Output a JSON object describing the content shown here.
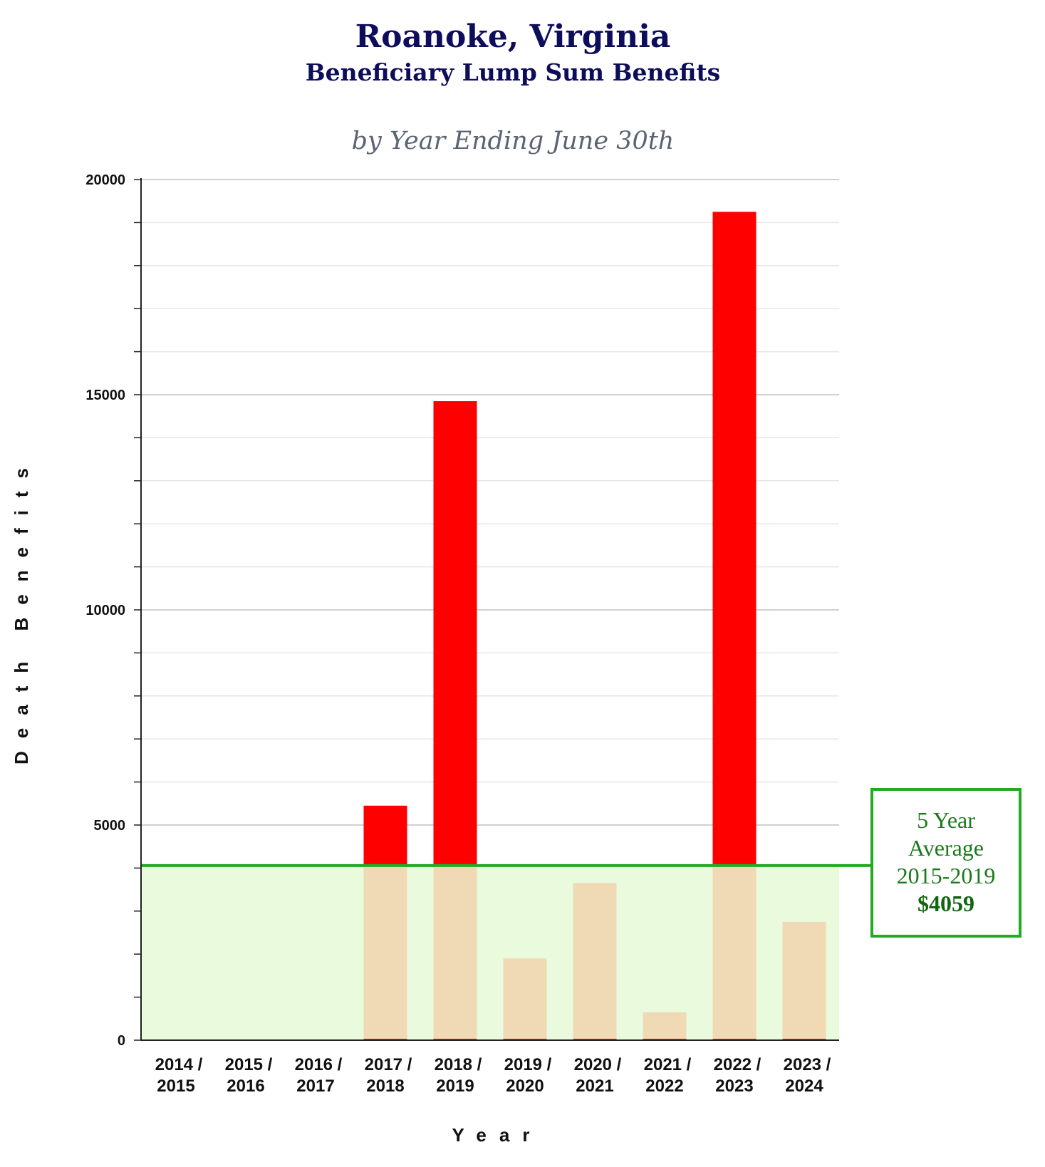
{
  "header": {
    "title": "Roanoke, Virginia",
    "subtitle": "Beneficiary Lump Sum Benefits",
    "caption": "by Year Ending June 30th"
  },
  "chart_data": {
    "type": "bar",
    "title": "Roanoke, Virginia Beneficiary Lump Sum Benefits",
    "subtitle": "by Year Ending June 30th",
    "xlabel": "Year",
    "ylabel": "Death Benefits",
    "categories": [
      [
        "2014 /",
        "2015"
      ],
      [
        "2015 /",
        "2016"
      ],
      [
        "2016 /",
        "2017"
      ],
      [
        "2017 /",
        "2018"
      ],
      [
        "2018 /",
        "2019"
      ],
      [
        "2019 /",
        "2020"
      ],
      [
        "2020 /",
        "2021"
      ],
      [
        "2021 /",
        "2022"
      ],
      [
        "2022 /",
        "2023"
      ],
      [
        "2023 /",
        "2024"
      ]
    ],
    "values": [
      0,
      0,
      0,
      5450,
      14850,
      1900,
      3650,
      650,
      19250,
      2750
    ],
    "ylim": [
      0,
      20000
    ],
    "yticks": [
      0,
      5000,
      10000,
      15000,
      20000
    ],
    "minor_tick_step": 1000,
    "grid": true,
    "average": {
      "value": 4059,
      "line1": "5 Year",
      "line2": "Average",
      "line3": "2015-2019",
      "value_label": "$4059"
    },
    "colors": {
      "above_average": "#ff0000",
      "below_average": "#f0dab5",
      "average_band": "#e9fbdc",
      "average_line": "#22aa22"
    }
  }
}
